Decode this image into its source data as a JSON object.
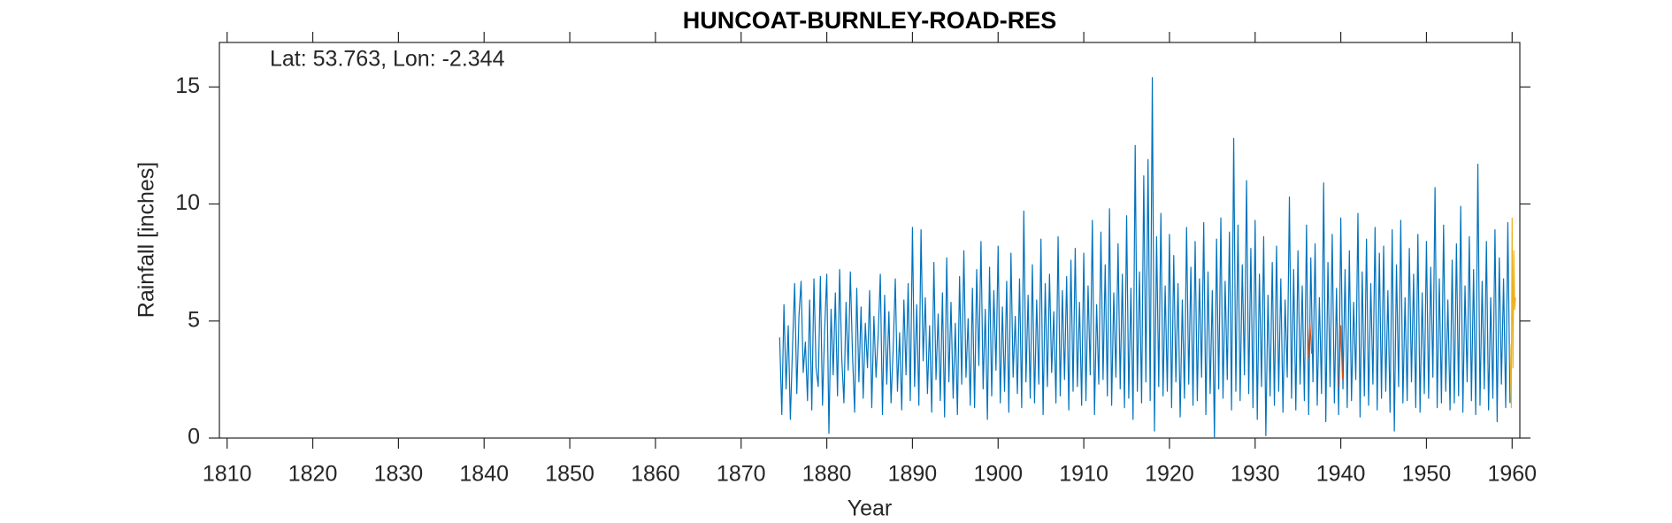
{
  "chart_data": {
    "type": "line",
    "title": "HUNCOAT-BURNLEY-ROAD-RES",
    "annotation": "Lat: 53.763, Lon: -2.344",
    "xlabel": "Year",
    "ylabel": "Rainfall [inches]",
    "xlim": [
      1809.1,
      1960.9
    ],
    "ylim": [
      0,
      16.9
    ],
    "xticks": [
      1810,
      1820,
      1830,
      1840,
      1850,
      1860,
      1870,
      1880,
      1890,
      1900,
      1910,
      1920,
      1930,
      1940,
      1950,
      1960
    ],
    "yticks": [
      0,
      5,
      10,
      15
    ],
    "series": [
      {
        "color": "#0072BD",
        "x": [
          1874.5,
          1874.75,
          1875,
          1875.25,
          1875.5,
          1875.75,
          1876,
          1876.25,
          1876.5,
          1876.75,
          1877,
          1877.25,
          1877.5,
          1877.75,
          1878,
          1878.25,
          1878.5,
          1878.75,
          1879,
          1879.25,
          1879.5,
          1879.75,
          1880,
          1880.25,
          1880.5,
          1880.75,
          1881,
          1881.25,
          1881.5,
          1881.75,
          1882,
          1882.25,
          1882.5,
          1882.75,
          1883,
          1883.25,
          1883.5,
          1883.75,
          1884,
          1884.25,
          1884.5,
          1884.75,
          1885,
          1885.25,
          1885.5,
          1885.75,
          1886,
          1886.25,
          1886.5,
          1886.75,
          1887,
          1887.25,
          1887.5,
          1887.75,
          1888,
          1888.25,
          1888.5,
          1888.75,
          1889,
          1889.25,
          1889.5,
          1889.75,
          1890,
          1890.25,
          1890.5,
          1890.75,
          1891,
          1891.25,
          1891.5,
          1891.75,
          1892,
          1892.25,
          1892.5,
          1892.75,
          1893,
          1893.25,
          1893.5,
          1893.75,
          1894,
          1894.25,
          1894.5,
          1894.75,
          1895,
          1895.25,
          1895.5,
          1895.75,
          1896,
          1896.25,
          1896.5,
          1896.75,
          1897,
          1897.25,
          1897.5,
          1897.75,
          1898,
          1898.25,
          1898.5,
          1898.75,
          1899,
          1899.25,
          1899.5,
          1899.75,
          1900,
          1900.25,
          1900.5,
          1900.75,
          1901,
          1901.25,
          1901.5,
          1901.75,
          1902,
          1902.25,
          1902.5,
          1902.75,
          1903,
          1903.25,
          1903.5,
          1903.75,
          1904,
          1904.25,
          1904.5,
          1904.75,
          1905,
          1905.25,
          1905.5,
          1905.75,
          1906,
          1906.25,
          1906.5,
          1906.75,
          1907,
          1907.25,
          1907.5,
          1907.75,
          1908,
          1908.25,
          1908.5,
          1908.75,
          1909,
          1909.25,
          1909.5,
          1909.75,
          1910,
          1910.25,
          1910.5,
          1910.75,
          1911,
          1911.25,
          1911.5,
          1911.75,
          1912,
          1912.25,
          1912.5,
          1912.75,
          1913,
          1913.25,
          1913.5,
          1913.75,
          1914,
          1914.25,
          1914.5,
          1914.75,
          1915,
          1915.25,
          1915.5,
          1915.75,
          1916,
          1916.25,
          1916.5,
          1916.75,
          1917,
          1917.25,
          1917.5,
          1917.75,
          1918,
          1918.25,
          1918.5,
          1918.75,
          1919,
          1919.25,
          1919.5,
          1919.75,
          1920,
          1920.25,
          1920.5,
          1920.75,
          1921,
          1921.25,
          1921.5,
          1921.75,
          1922,
          1922.25,
          1922.5,
          1922.75,
          1923,
          1923.25,
          1923.5,
          1923.75,
          1924,
          1924.25,
          1924.5,
          1924.75,
          1925,
          1925.25,
          1925.5,
          1925.75,
          1926,
          1926.25,
          1926.5,
          1926.75,
          1927,
          1927.25,
          1927.5,
          1927.75,
          1928,
          1928.25,
          1928.5,
          1928.75,
          1929,
          1929.25,
          1929.5,
          1929.75,
          1930,
          1930.25,
          1930.5,
          1930.75,
          1931,
          1931.25,
          1931.5,
          1931.75,
          1932,
          1932.25,
          1932.5,
          1932.75,
          1933,
          1933.25,
          1933.5,
          1933.75,
          1934,
          1934.25,
          1934.5,
          1934.75,
          1935,
          1935.25,
          1935.5,
          1935.75,
          1936,
          1936.25,
          1936.5,
          1936.75,
          1937,
          1937.25,
          1937.5,
          1937.75,
          1938,
          1938.25,
          1938.5,
          1938.75,
          1939,
          1939.25,
          1939.5,
          1939.75,
          1940,
          1940.25,
          1940.5,
          1940.75,
          1941,
          1941.25,
          1941.5,
          1941.75,
          1942,
          1942.25,
          1942.5,
          1942.75,
          1943,
          1943.25,
          1943.5,
          1943.75,
          1944,
          1944.25,
          1944.5,
          1944.75,
          1945,
          1945.25,
          1945.5,
          1945.75,
          1946,
          1946.25,
          1946.5,
          1946.75,
          1947,
          1947.25,
          1947.5,
          1947.75,
          1948,
          1948.25,
          1948.5,
          1948.75,
          1949,
          1949.25,
          1949.5,
          1949.75,
          1950,
          1950.25,
          1950.5,
          1950.75,
          1951,
          1951.25,
          1951.5,
          1951.75,
          1952,
          1952.25,
          1952.5,
          1952.75,
          1953,
          1953.25,
          1953.5,
          1953.75,
          1954,
          1954.25,
          1954.5,
          1954.75,
          1955,
          1955.25,
          1955.5,
          1955.75,
          1956,
          1956.25,
          1956.5,
          1956.75,
          1957,
          1957.25,
          1957.5,
          1957.75,
          1958,
          1958.25,
          1958.5,
          1958.75,
          1959,
          1959.25,
          1959.5,
          1959.75
        ],
        "values": [
          4.3,
          1.0,
          5.7,
          2.1,
          4.8,
          0.8,
          3.9,
          6.6,
          1.9,
          5.2,
          6.7,
          2.8,
          4.1,
          1.6,
          5.9,
          1.2,
          6.8,
          3.0,
          2.2,
          6.9,
          1.4,
          4.6,
          7.0,
          0.2,
          5.5,
          2.7,
          6.2,
          1.8,
          7.2,
          3.4,
          1.5,
          5.8,
          2.9,
          7.1,
          3.6,
          1.1,
          6.4,
          2.4,
          5.6,
          1.7,
          4.9,
          3.0,
          6.3,
          1.3,
          5.2,
          2.6,
          4.4,
          7.0,
          1.0,
          6.1,
          2.3,
          5.4,
          1.5,
          3.8,
          6.8,
          2.0,
          4.5,
          1.2,
          5.9,
          2.7,
          6.6,
          1.6,
          9.0,
          2.2,
          5.7,
          1.4,
          8.9,
          3.3,
          6.0,
          1.9,
          4.8,
          1.1,
          7.5,
          2.5,
          5.3,
          1.6,
          6.2,
          0.9,
          7.7,
          2.4,
          5.8,
          1.7,
          4.9,
          1.0,
          6.9,
          2.3,
          8.0,
          2.6,
          5.1,
          1.4,
          6.4,
          1.3,
          7.2,
          3.1,
          8.4,
          2.1,
          5.5,
          0.8,
          7.3,
          1.8,
          6.3,
          2.9,
          8.2,
          1.5,
          5.6,
          2.0,
          6.7,
          1.1,
          7.9,
          2.6,
          5.2,
          1.9,
          6.8,
          1.3,
          9.7,
          2.4,
          6.1,
          1.7,
          7.4,
          1.5,
          5.9,
          2.3,
          8.5,
          1.0,
          6.6,
          2.2,
          7.0,
          2.8,
          5.4,
          1.5,
          8.6,
          1.8,
          6.3,
          2.5,
          6.9,
          1.2,
          7.6,
          2.0,
          8.1,
          2.2,
          5.8,
          1.4,
          7.9,
          1.6,
          6.5,
          2.7,
          9.3,
          1.0,
          5.7,
          2.3,
          8.8,
          2.5,
          7.4,
          1.8,
          9.8,
          1.4,
          6.2,
          2.6,
          8.3,
          2.1,
          7.0,
          1.3,
          9.5,
          1.7,
          6.4,
          0.8,
          12.5,
          2.0,
          7.1,
          1.5,
          11.2,
          2.4,
          11.9,
          1.6,
          15.4,
          0.3,
          8.6,
          2.2,
          9.6,
          1.8,
          6.5,
          2.0,
          8.7,
          1.3,
          7.8,
          2.4,
          6.6,
          0.9,
          5.9,
          1.7,
          9.0,
          2.3,
          7.3,
          1.4,
          8.4,
          1.6,
          6.8,
          2.6,
          9.2,
          1.0,
          7.1,
          1.9,
          6.3,
          0.0,
          8.5,
          2.1,
          9.4,
          1.7,
          6.7,
          2.5,
          8.8,
          1.2,
          12.8,
          2.0,
          9.1,
          1.6,
          7.4,
          2.7,
          11.0,
          1.9,
          8.1,
          1.3,
          9.3,
          0.8,
          7.0,
          2.2,
          8.6,
          0.1,
          6.1,
          1.8,
          7.5,
          1.4,
          8.2,
          2.0,
          6.8,
          1.1,
          5.9,
          2.6,
          10.3,
          1.7,
          7.2,
          1.2,
          8.0,
          2.3,
          6.5,
          1.6,
          9.1,
          1.0,
          7.7,
          2.4,
          8.3,
          1.4,
          6.0,
          1.9,
          10.9,
          0.7,
          7.5,
          2.2,
          8.7,
          1.5,
          6.4,
          1.0,
          9.4,
          2.1,
          7.2,
          1.3,
          8.0,
          1.6,
          5.8,
          2.5,
          9.6,
          0.9,
          7.1,
          1.8,
          8.5,
          1.4,
          6.6,
          2.3,
          9.0,
          1.2,
          7.9,
          1.7,
          8.2,
          2.0,
          6.3,
          1.1,
          8.9,
          0.3,
          7.4,
          2.2,
          9.3,
          1.5,
          6.0,
          1.6,
          8.1,
          2.4,
          7.0,
          1.3,
          8.7,
          1.1,
          6.2,
          1.9,
          8.4,
          1.7,
          7.3,
          2.6,
          10.7,
          1.3,
          6.8,
          1.5,
          9.1,
          2.0,
          5.9,
          1.2,
          7.6,
          1.5,
          8.3,
          1.8,
          9.9,
          1.1,
          6.5,
          2.4,
          8.6,
          1.6,
          7.2,
          1.0,
          11.7,
          1.4,
          6.7,
          2.1,
          8.4,
          1.2,
          6.0,
          1.7,
          8.9,
          0.7,
          7.7,
          2.3,
          6.8,
          1.3,
          9.2,
          1.5
        ]
      },
      {
        "color": "#D95319",
        "x": [
          1936.2,
          1936.4,
          1936.6,
          1938,
          1939.8,
          1940.0,
          1940.2
        ],
        "values": [
          3.4,
          4.9,
          3.6,
          null,
          2.2,
          4.8,
          2.5
        ]
      },
      {
        "color": "#EDB120",
        "x": [
          1959.75,
          1959.9,
          1960.0,
          1960.1,
          1960.2,
          1960.3,
          1960.4
        ],
        "values": [
          4.0,
          1.3,
          9.4,
          3.0,
          8.0,
          5.5,
          6.0
        ]
      }
    ]
  }
}
